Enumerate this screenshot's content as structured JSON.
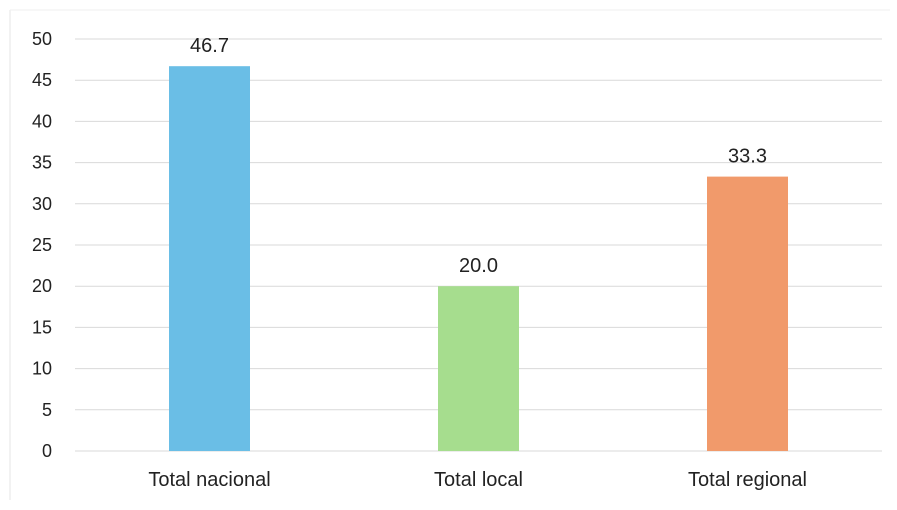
{
  "chart_data": {
    "type": "bar",
    "categories": [
      "Total nacional",
      "Total local",
      "Total regional"
    ],
    "values": [
      46.7,
      20.0,
      33.3
    ],
    "data_labels": [
      "46.7",
      "20.0",
      "33.3"
    ],
    "colors": [
      "#6ABEE6",
      "#A6DD8E",
      "#F19A6B"
    ],
    "ylim": [
      0,
      50
    ],
    "yticks": [
      0,
      5,
      10,
      15,
      20,
      25,
      30,
      35,
      40,
      45,
      50
    ],
    "grid": true,
    "gridline_color": "#D9D9D9",
    "legend": "none"
  }
}
